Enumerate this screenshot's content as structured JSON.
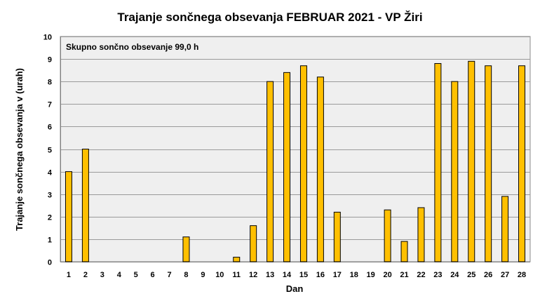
{
  "chart_data": {
    "type": "bar",
    "title": "Trajanje  sončnega obsevanja  FEBRUAR 2021 - VP Žiri",
    "xlabel": "Dan",
    "ylabel": "Trajanje  sončnega obsevanja  v (urah)",
    "annotation": "Skupno sončno obsevanje 99,0 h",
    "ylim": [
      0,
      10
    ],
    "yticks": [
      "0",
      "1",
      "2",
      "3",
      "4",
      "5",
      "6",
      "7",
      "8",
      "9",
      "10"
    ],
    "categories": [
      "1",
      "2",
      "3",
      "4",
      "5",
      "6",
      "7",
      "8",
      "9",
      "10",
      "11",
      "12",
      "13",
      "14",
      "15",
      "16",
      "17",
      "18",
      "19",
      "20",
      "21",
      "22",
      "23",
      "24",
      "25",
      "26",
      "27",
      "28"
    ],
    "values": [
      4.0,
      5.0,
      0,
      0,
      0,
      0,
      0,
      1.1,
      0,
      0,
      0.2,
      1.6,
      8.0,
      8.4,
      8.7,
      8.2,
      2.2,
      0,
      0,
      2.3,
      0.9,
      2.4,
      8.8,
      8.0,
      8.9,
      8.7,
      2.9,
      8.7
    ],
    "grid": true,
    "colors": {
      "bar": "#FFC000",
      "bar_border": "#000000",
      "plot_bg": "#EFEFEF",
      "grid": "#9A9A9A"
    }
  }
}
